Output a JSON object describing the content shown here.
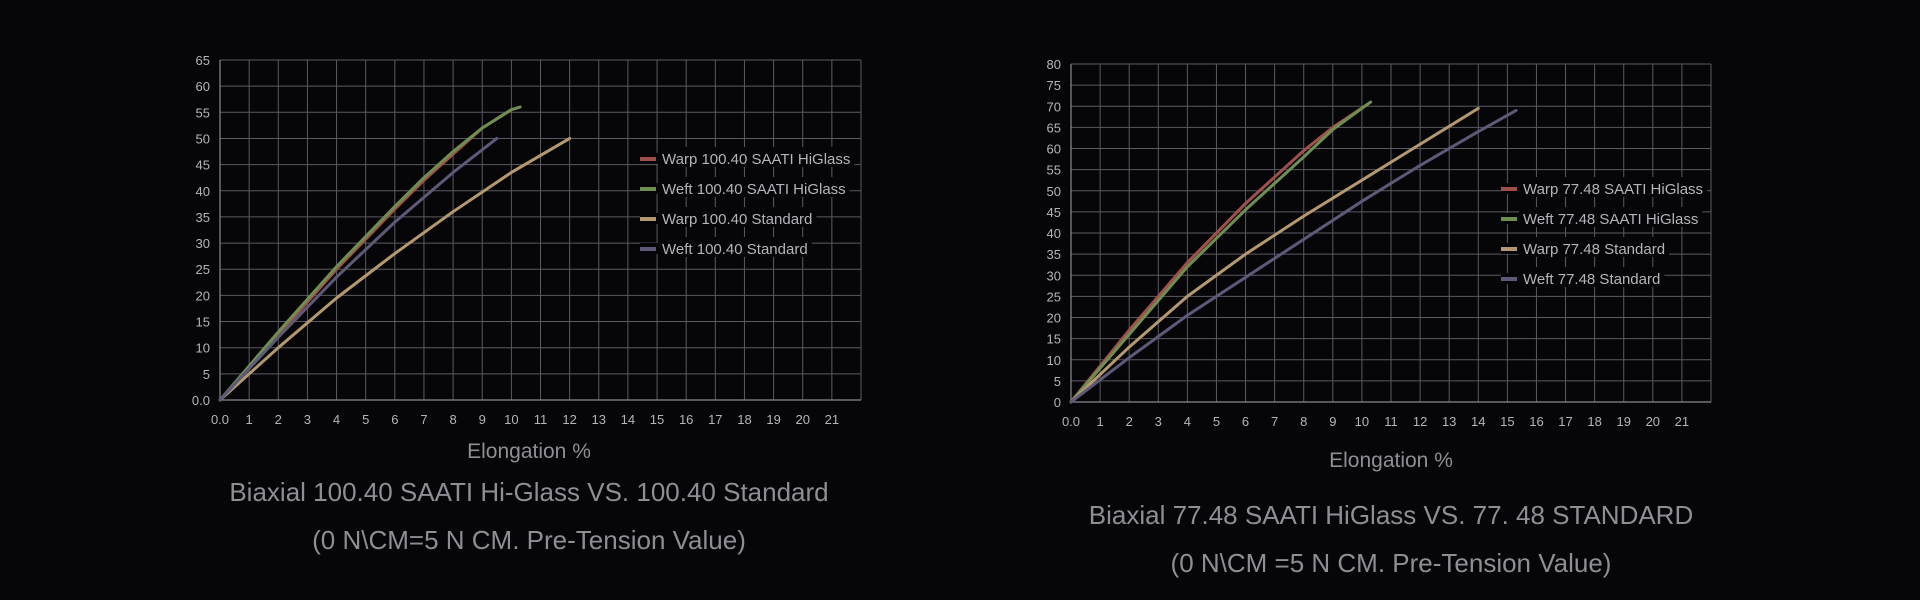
{
  "chart_data": [
    {
      "type": "line",
      "xlabel": "Elongation %",
      "caption_line1": "Biaxial 100.40 SAATI Hi-Glass VS. 100.40 Standard",
      "caption_line2": "(0 N\\CM=5 N CM. Pre-Tension Value)",
      "xlim": [
        0,
        22
      ],
      "ylim": [
        0,
        65
      ],
      "x_ticks": [
        "0.0",
        "1",
        "2",
        "3",
        "4",
        "5",
        "6",
        "7",
        "8",
        "9",
        "10",
        "11",
        "12",
        "13",
        "14",
        "15",
        "16",
        "17",
        "18",
        "19",
        "20",
        "21"
      ],
      "y_ticks": [
        "0.0",
        "5",
        "10",
        "15",
        "20",
        "25",
        "30",
        "35",
        "40",
        "45",
        "50",
        "55",
        "60",
        "65"
      ],
      "grid": true,
      "legend_position": "right",
      "series": [
        {
          "name": "Warp 100.40 SAATI HiGlass",
          "color": "#a0504a",
          "x": [
            0,
            2,
            4,
            6,
            7,
            8,
            9,
            10
          ],
          "y": [
            0,
            12.5,
            25,
            36.5,
            42,
            47,
            52,
            55.5
          ]
        },
        {
          "name": "Weft 100.40 SAATI HiGlass",
          "color": "#6e8e52",
          "x": [
            0,
            2,
            4,
            6,
            7,
            8,
            9,
            10,
            10.3
          ],
          "y": [
            0,
            13,
            25.5,
            37,
            42.5,
            47.5,
            52,
            55.5,
            56
          ]
        },
        {
          "name": "Warp 100.40 Standard",
          "color": "#b49870",
          "x": [
            0,
            2,
            4,
            6,
            8,
            10,
            12
          ],
          "y": [
            0,
            10,
            19.5,
            28,
            36,
            43.5,
            50
          ]
        },
        {
          "name": "Weft 100.40 Standard",
          "color": "#5c5a78",
          "x": [
            0,
            2,
            4,
            6,
            8,
            9.5
          ],
          "y": [
            0,
            12,
            23.5,
            34,
            43.5,
            50
          ]
        }
      ]
    },
    {
      "type": "line",
      "xlabel": "Elongation %",
      "caption_line1": "Biaxial 77.48 SAATI HiGlass VS. 77. 48 STANDARD",
      "caption_line2": "(0 N\\CM =5 N CM. Pre-Tension Value)",
      "xlim": [
        0,
        22
      ],
      "ylim": [
        0,
        80
      ],
      "x_ticks": [
        "0.0",
        "1",
        "2",
        "3",
        "4",
        "5",
        "6",
        "7",
        "8",
        "9",
        "10",
        "11",
        "12",
        "13",
        "14",
        "15",
        "16",
        "17",
        "18",
        "19",
        "20",
        "21"
      ],
      "y_ticks": [
        "0",
        "5",
        "10",
        "15",
        "20",
        "25",
        "30",
        "35",
        "40",
        "45",
        "50",
        "55",
        "60",
        "65",
        "70",
        "75",
        "80"
      ],
      "grid": true,
      "legend_position": "right",
      "series": [
        {
          "name": "Warp 77.48 SAATI HiGlass",
          "color": "#a0504a",
          "x": [
            0,
            2,
            4,
            6,
            8,
            9,
            10.2
          ],
          "y": [
            0,
            17,
            33,
            47,
            59.5,
            65,
            70.5
          ]
        },
        {
          "name": "Weft 77.48 SAATI HiGlass",
          "color": "#6e8e52",
          "x": [
            0,
            2,
            4,
            6,
            8,
            9,
            10.3
          ],
          "y": [
            0,
            16,
            32,
            45.5,
            58,
            64.5,
            71
          ]
        },
        {
          "name": "Warp 77.48 Standard",
          "color": "#b49870",
          "x": [
            0,
            2,
            4,
            6,
            8,
            10,
            12,
            14
          ],
          "y": [
            0,
            13,
            25,
            35,
            44,
            52.5,
            61,
            69.5
          ]
        },
        {
          "name": "Weft 77.48 Standard",
          "color": "#5c5a78",
          "x": [
            0,
            2,
            4,
            6,
            8,
            10,
            12,
            14,
            15.3
          ],
          "y": [
            0,
            10.5,
            20.5,
            29.5,
            38.5,
            47.5,
            56,
            64,
            69
          ]
        }
      ]
    }
  ]
}
